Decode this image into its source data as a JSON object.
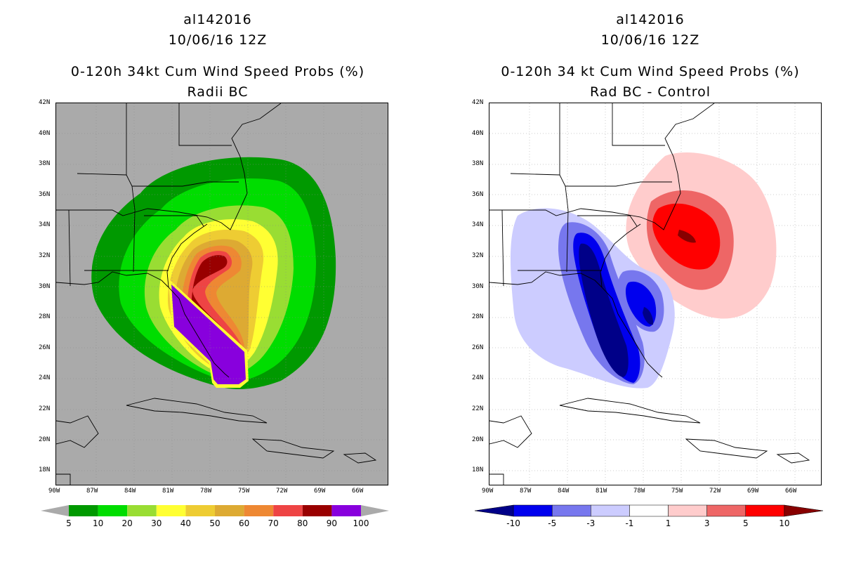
{
  "left": {
    "title_line1": "al142016",
    "title_line2": "10/06/16 12Z",
    "title_line3": "0-120h 34kt Cum Wind Speed Probs (%)",
    "title_line4": "Radii BC",
    "colorbar_labels": [
      "5",
      "10",
      "20",
      "30",
      "40",
      "50",
      "60",
      "70",
      "80",
      "90",
      "100"
    ],
    "colorbar_colors": [
      "#009900",
      "#00dd00",
      "#99dd33",
      "#ffff33",
      "#eecc33",
      "#ddaa33",
      "#ee8833",
      "#ee4444",
      "#990000",
      "#8800dd"
    ]
  },
  "right": {
    "title_line1": "al142016",
    "title_line2": "10/06/16 12Z",
    "title_line3": "0-120h 34 kt Cum Wind Speed Probs (%)",
    "title_line4": "Rad BC - Control",
    "colorbar_labels": [
      "-10",
      "-5",
      "-3",
      "-1",
      "1",
      "3",
      "5",
      "10"
    ],
    "colorbar_colors": [
      "#000088",
      "#0000ee",
      "#7777ee",
      "#ccccff",
      "#ffffff",
      "#ffcccc",
      "#ee6666",
      "#ff0000",
      "#880000"
    ]
  },
  "lat_labels": [
    "42N",
    "40N",
    "38N",
    "36N",
    "34N",
    "32N",
    "30N",
    "28N",
    "26N",
    "24N",
    "22N",
    "20N",
    "18N"
  ],
  "lon_labels": [
    "90W",
    "87W",
    "84W",
    "81W",
    "78W",
    "75W",
    "72W",
    "69W",
    "66W"
  ],
  "map_background_left": "#aaaaaa",
  "map_background_right": "#ffffff"
}
